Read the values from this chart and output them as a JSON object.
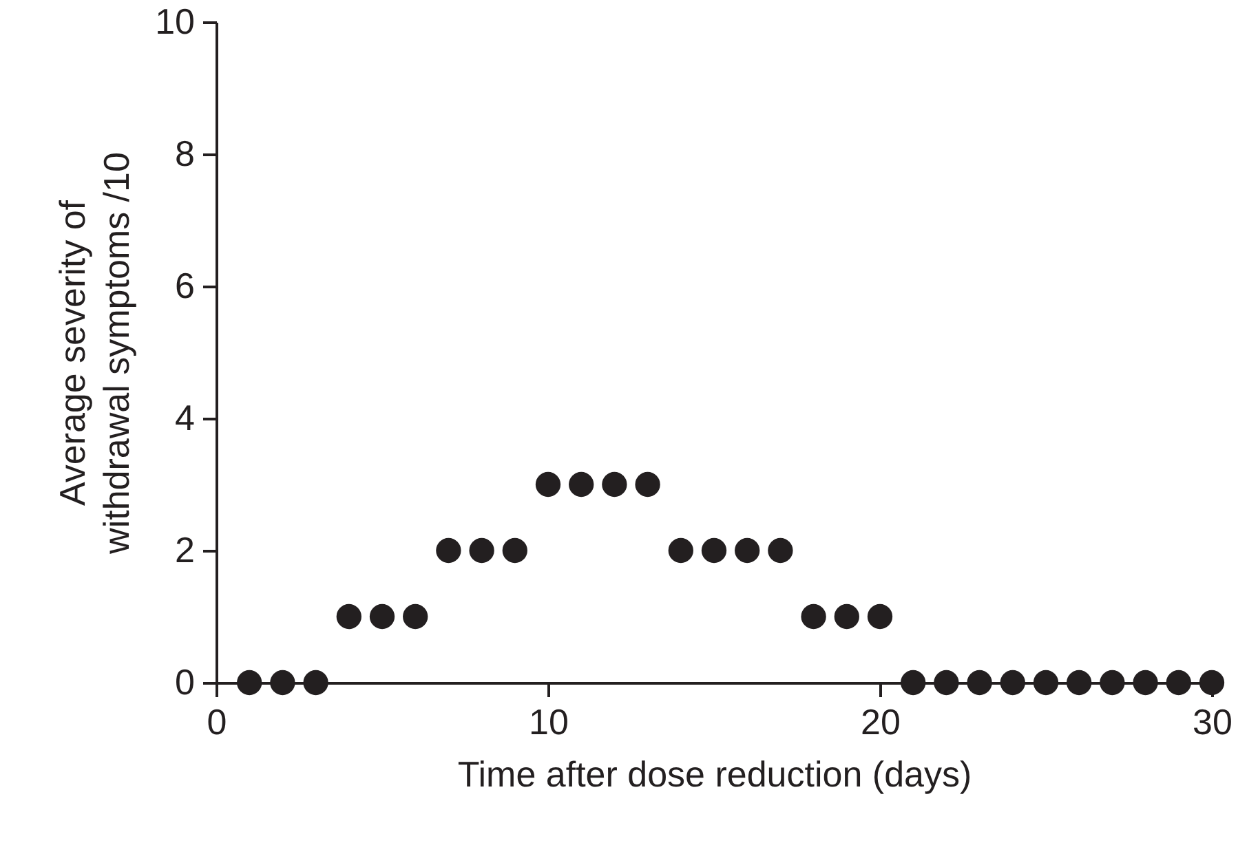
{
  "chart_data": {
    "type": "scatter",
    "xlabel": "Time after dose reduction (days)",
    "ylabel": "Average severity of\nwithdrawal symptoms /10",
    "x": [
      1,
      2,
      3,
      4,
      5,
      6,
      7,
      8,
      9,
      10,
      11,
      12,
      13,
      14,
      15,
      16,
      17,
      18,
      19,
      20,
      21,
      22,
      23,
      24,
      25,
      26,
      27,
      28,
      29,
      30
    ],
    "series": [
      {
        "color": "#231f20",
        "values": [
          0,
          0,
          0,
          1,
          1,
          1,
          2,
          2,
          2,
          3,
          3,
          3,
          3,
          2,
          2,
          2,
          2,
          1,
          1,
          1,
          0,
          0,
          0,
          0,
          0,
          0,
          0,
          0,
          0,
          0
        ]
      }
    ],
    "xlim": [
      0,
      30
    ],
    "xticks": [
      0,
      10,
      20,
      30
    ],
    "ylim": [
      0,
      10
    ],
    "yticks": [
      0,
      2,
      4,
      6,
      8,
      10
    ],
    "marker": "circle",
    "grid": false
  }
}
